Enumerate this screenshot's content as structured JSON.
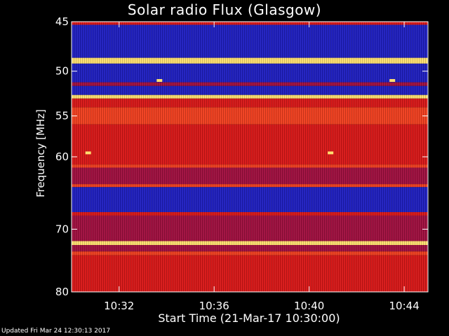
{
  "chart_data": {
    "type": "heatmap",
    "title": "Solar radio Flux (Glasgow)",
    "xlabel": "Start Time (21-Mar-17 10:30:00)",
    "ylabel": "Frequency [MHz]",
    "x_ticks": [
      "10:32",
      "10:36",
      "10:40",
      "10:44"
    ],
    "x_tick_minutes": [
      2,
      6,
      10,
      14
    ],
    "xlim_minutes": [
      0,
      15
    ],
    "y_ticks": [
      "45",
      "50",
      "55",
      "60",
      "70",
      "80"
    ],
    "y_tick_values": [
      45,
      50,
      55,
      60,
      70,
      80
    ],
    "ylim": [
      45,
      80
    ],
    "y_scale": "log",
    "grid": false,
    "colormap": "blue-red-yellow",
    "bands": [
      {
        "f_start": 45.0,
        "f_end": 45.3,
        "level": "high"
      },
      {
        "f_start": 45.3,
        "f_end": 48.6,
        "level": "low"
      },
      {
        "f_start": 48.6,
        "f_end": 49.2,
        "level": "very-high"
      },
      {
        "f_start": 49.2,
        "f_end": 51.2,
        "level": "low"
      },
      {
        "f_start": 51.2,
        "f_end": 51.6,
        "level": "medium"
      },
      {
        "f_start": 51.6,
        "f_end": 52.6,
        "level": "low"
      },
      {
        "f_start": 52.6,
        "f_end": 53.0,
        "level": "very-high"
      },
      {
        "f_start": 53.0,
        "f_end": 54.0,
        "level": "high"
      },
      {
        "f_start": 54.0,
        "f_end": 56.0,
        "level": "elevated"
      },
      {
        "f_start": 56.0,
        "f_end": 61.0,
        "level": "high"
      },
      {
        "f_start": 61.0,
        "f_end": 61.4,
        "level": "elevated"
      },
      {
        "f_start": 61.4,
        "f_end": 63.6,
        "level": "medium"
      },
      {
        "f_start": 63.6,
        "f_end": 64.0,
        "level": "elevated"
      },
      {
        "f_start": 64.0,
        "f_end": 67.5,
        "level": "low"
      },
      {
        "f_start": 67.5,
        "f_end": 68.0,
        "level": "high"
      },
      {
        "f_start": 68.0,
        "f_end": 71.8,
        "level": "medium"
      },
      {
        "f_start": 71.8,
        "f_end": 72.4,
        "level": "very-high"
      },
      {
        "f_start": 72.4,
        "f_end": 73.4,
        "level": "medium"
      },
      {
        "f_start": 73.4,
        "f_end": 74.0,
        "level": "elevated"
      },
      {
        "f_start": 74.0,
        "f_end": 80.0,
        "level": "high"
      }
    ],
    "bursts": [
      {
        "minute": 0.7,
        "frequency": 59.5
      },
      {
        "minute": 10.9,
        "frequency": 59.5
      },
      {
        "minute": 3.7,
        "frequency": 51.0
      },
      {
        "minute": 13.5,
        "frequency": 51.0
      }
    ]
  },
  "footer": "Updated Fri Mar 24 12:30:13 2017",
  "colors": {
    "background": "#000000",
    "low": "#2020c0",
    "medium": "#a01040",
    "high": "#d81818",
    "elevated": "#f04020",
    "very_high": "#ffe070",
    "axis": "#ffffff"
  }
}
